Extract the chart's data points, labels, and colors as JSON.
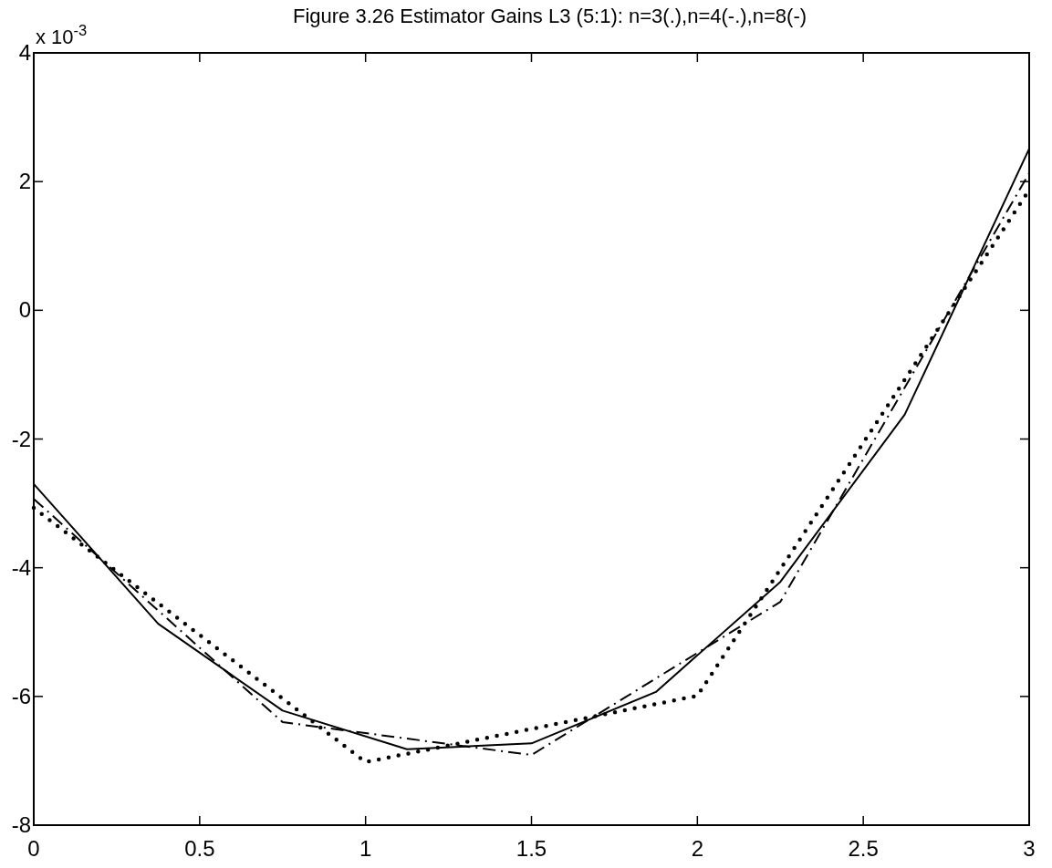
{
  "chart_data": {
    "type": "line",
    "title": "Figure 3.26 Estimator Gains L3 (5:1): n=3(.),n=4(-.),n=8(-)",
    "annotations": [
      "x 10$^{-3}$"
    ],
    "xlim": [
      0,
      3
    ],
    "ylim": [
      -8,
      4
    ],
    "xticks": [
      0,
      0.5,
      1,
      1.5,
      2,
      2.5,
      3
    ],
    "yticks": [
      -8,
      -6,
      -4,
      -2,
      0,
      2,
      4
    ],
    "marker": "none",
    "series": [
      {
        "color": "#000000",
        "line_style": "dotted",
        "x": [
          0,
          1,
          2,
          3
        ],
        "values": [
          -3.07,
          -7.02,
          -5.99,
          1.87
        ]
      },
      {
        "color": "#000000",
        "line_style": "dashdot",
        "x": [
          0,
          0.75,
          1.5,
          2.25,
          3
        ],
        "values": [
          -2.93,
          -6.4,
          -6.91,
          -4.53,
          2.13
        ]
      },
      {
        "color": "#000000",
        "line_style": "solid",
        "x": [
          0,
          0.375,
          0.75,
          1.125,
          1.5,
          1.875,
          2.25,
          2.625,
          3
        ],
        "values": [
          -2.7,
          -4.87,
          -6.22,
          -6.82,
          -6.73,
          -5.93,
          -4.22,
          -1.62,
          2.51
        ]
      }
    ]
  }
}
